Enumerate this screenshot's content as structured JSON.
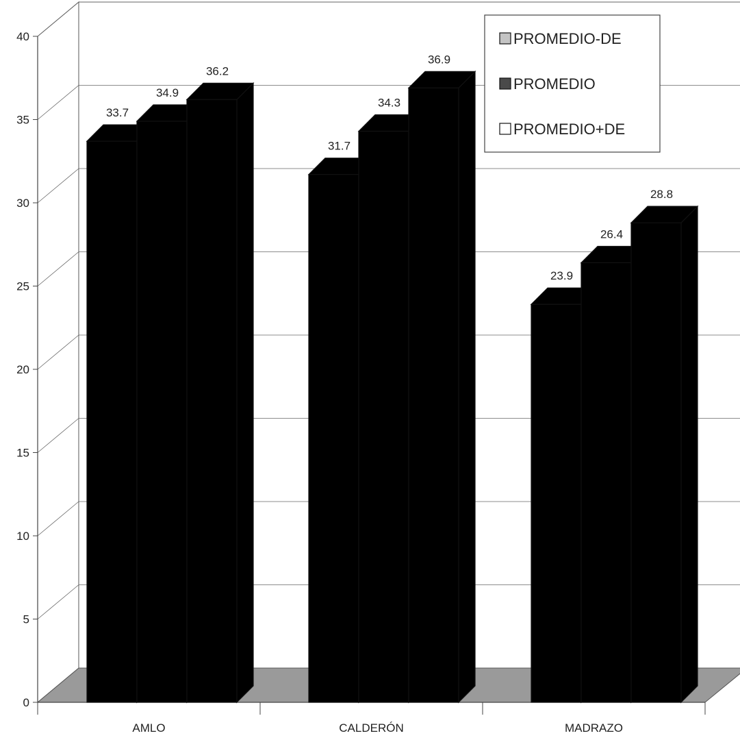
{
  "chart_data": {
    "type": "bar",
    "categories": [
      "AMLO",
      "CALDERÓN",
      "MADRAZO"
    ],
    "series": [
      {
        "name": "PROMEDIO-DE",
        "values": [
          33.7,
          31.7,
          23.9
        ]
      },
      {
        "name": "PROMEDIO",
        "values": [
          34.9,
          34.3,
          26.4
        ]
      },
      {
        "name": "PROMEDIO+DE",
        "values": [
          36.2,
          36.9,
          28.8
        ]
      }
    ],
    "bar_shades": [
      [
        "#ececec",
        "#c4c4c4",
        "#5a5a5a"
      ],
      [
        "#c8c8c8",
        "#3a3a3a",
        "#6a6a6a"
      ],
      [
        "#f6f6f6",
        "#d0d0d0",
        "#7a7a7a"
      ]
    ],
    "yticks": [
      "0",
      "5",
      "10",
      "15",
      "20",
      "25",
      "30",
      "35",
      "40"
    ],
    "ylim": [
      0,
      40
    ],
    "grid": true,
    "legend_position": "top-right",
    "legend_swatches": [
      "#c4c4c4",
      "#4a4a4a",
      "#ffffff"
    ],
    "title": "",
    "xlabel": "",
    "ylabel": "",
    "three_d": true
  }
}
